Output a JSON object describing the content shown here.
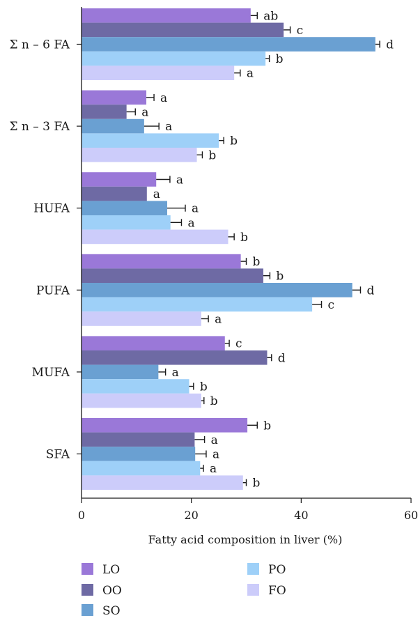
{
  "chart_data": {
    "type": "bar",
    "orientation": "horizontal",
    "categories": [
      "Σ n – 6 FA",
      "Σ n – 3 FA",
      "HUFA",
      "PUFA",
      "MUFA",
      "SFA"
    ],
    "series": [
      {
        "name": "LO",
        "color": "#9a78d8",
        "values": [
          30.8,
          11.8,
          13.6,
          29.0,
          26.1,
          30.2
        ],
        "errors": [
          1.2,
          1.4,
          2.5,
          1.0,
          0.8,
          1.8
        ],
        "sig": [
          "ab",
          "a",
          "a",
          "b",
          "c",
          "b"
        ]
      },
      {
        "name": "OO",
        "color": "#6e6aa4",
        "values": [
          36.8,
          8.2,
          11.9,
          33.1,
          33.8,
          20.6
        ],
        "errors": [
          1.2,
          1.6,
          0.0,
          1.2,
          0.8,
          1.8
        ],
        "sig": [
          "c",
          "a",
          "a",
          "b",
          "d",
          "a"
        ]
      },
      {
        "name": "SO",
        "color": "#6aa0d2",
        "values": [
          53.5,
          11.4,
          15.6,
          49.3,
          14.0,
          20.7
        ],
        "errors": [
          0.8,
          2.7,
          3.3,
          1.5,
          1.3,
          2.0
        ],
        "sig": [
          "d",
          "a",
          "a",
          "d",
          "a",
          "a"
        ]
      },
      {
        "name": "PO",
        "color": "#9ed0f8",
        "values": [
          33.5,
          25.0,
          16.2,
          42.0,
          19.6,
          21.6
        ],
        "errors": [
          0.7,
          0.9,
          2.0,
          1.7,
          0.8,
          0.6
        ],
        "sig": [
          "b",
          "b",
          "a",
          "c",
          "b",
          "a"
        ]
      },
      {
        "name": "FO",
        "color": "#ccccfa",
        "values": [
          27.8,
          21.0,
          26.7,
          21.8,
          21.8,
          29.4
        ],
        "errors": [
          1.1,
          1.0,
          1.1,
          1.3,
          0.5,
          0.6
        ],
        "sig": [
          "a",
          "b",
          "b",
          "a",
          "b",
          "b"
        ]
      }
    ],
    "xlabel": "Fatty acid composition in liver (%)",
    "xlim": [
      0,
      60
    ],
    "xticks": [
      "0",
      "20",
      "40",
      "60"
    ],
    "grid": false,
    "legend_position": "bottom"
  }
}
